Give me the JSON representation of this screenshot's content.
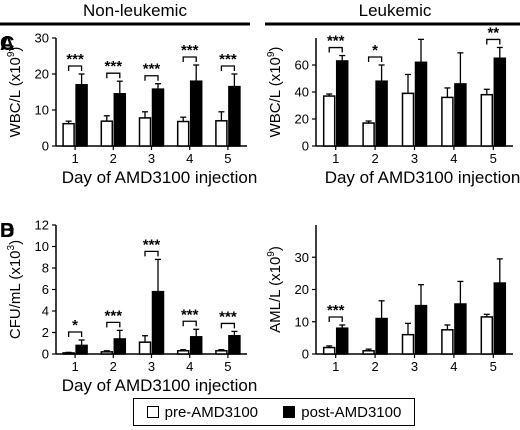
{
  "groups": {
    "left_title": "Non-leukemic",
    "right_title": "Leukemic"
  },
  "legend": {
    "pre": "pre-AMD3100",
    "post": "post-AMD3100"
  },
  "chart_data": [
    {
      "id": "A",
      "letter": "A",
      "type": "bar",
      "categories": [
        "1",
        "2",
        "3",
        "4",
        "5"
      ],
      "xlabel": "Day of AMD3100 injection",
      "ylabel": "WBC/L (x10",
      "ylabel_sup": "9",
      "ylabel_end": ")",
      "ylim": [
        0,
        30
      ],
      "yticks": [
        0,
        10,
        20,
        30
      ],
      "series": [
        {
          "name": "pre-AMD3100",
          "values": [
            6.2,
            6.9,
            7.8,
            6.8,
            7.0
          ],
          "errors": [
            0.7,
            1.5,
            1.7,
            1.2,
            2.5
          ]
        },
        {
          "name": "post-AMD3100",
          "values": [
            17.0,
            14.5,
            15.8,
            18.0,
            16.5
          ],
          "errors": [
            3.0,
            3.5,
            1.5,
            4.5,
            3.5
          ]
        }
      ],
      "significance": [
        "***",
        "***",
        "***",
        "***",
        "***"
      ]
    },
    {
      "id": "B",
      "letter": "B",
      "type": "bar",
      "categories": [
        "1",
        "2",
        "3",
        "4",
        "5"
      ],
      "xlabel": "Day of AMD3100 injection",
      "ylabel": "CFU/mL (x10",
      "ylabel_sup": "3",
      "ylabel_end": ")",
      "ylim": [
        0,
        12
      ],
      "yticks": [
        0,
        2,
        4,
        6,
        8,
        10,
        12
      ],
      "series": [
        {
          "name": "pre-AMD3100",
          "values": [
            0.1,
            0.2,
            1.1,
            0.3,
            0.3
          ],
          "errors": [
            0.05,
            0.1,
            0.6,
            0.1,
            0.1
          ]
        },
        {
          "name": "post-AMD3100",
          "values": [
            0.8,
            1.4,
            5.8,
            1.6,
            1.7
          ],
          "errors": [
            0.5,
            0.8,
            3.0,
            0.7,
            0.4
          ]
        }
      ],
      "significance": [
        "*",
        "***",
        "***",
        "***",
        "***"
      ]
    },
    {
      "id": "C",
      "letter": "C",
      "type": "bar",
      "categories": [
        "1",
        "2",
        "3",
        "4",
        "5"
      ],
      "xlabel": "Day of AMD3100 injection",
      "ylabel": "WBC/L (x10",
      "ylabel_sup": "9",
      "ylabel_end": ")",
      "ylim": [
        0,
        80
      ],
      "yticks": [
        0,
        20,
        40,
        60
      ],
      "series": [
        {
          "name": "pre-AMD3100",
          "values": [
            37,
            17,
            39,
            36,
            38
          ],
          "errors": [
            1.5,
            1.5,
            14,
            7,
            4
          ]
        },
        {
          "name": "post-AMD3100",
          "values": [
            63,
            48,
            62,
            46,
            65
          ],
          "errors": [
            4,
            12,
            17,
            23,
            8
          ]
        }
      ],
      "significance": [
        "***",
        "*",
        "",
        "",
        "**"
      ]
    },
    {
      "id": "D",
      "letter": "D",
      "type": "bar",
      "categories": [
        "1",
        "2",
        "3",
        "4",
        "5"
      ],
      "xlabel": "",
      "ylabel": "AML/L (x10",
      "ylabel_sup": "9",
      "ylabel_end": ")",
      "ylim": [
        0,
        40
      ],
      "yticks": [
        0,
        10,
        20,
        30
      ],
      "series": [
        {
          "name": "pre-AMD3100",
          "values": [
            2,
            1,
            6,
            7.5,
            11.5
          ],
          "errors": [
            0.5,
            0.5,
            3.5,
            1.5,
            0.8
          ]
        },
        {
          "name": "post-AMD3100",
          "values": [
            8,
            11,
            15,
            15.5,
            22
          ],
          "errors": [
            1,
            5.5,
            6.5,
            7,
            7.5
          ]
        }
      ],
      "significance": [
        "***",
        "",
        "",
        "",
        ""
      ]
    }
  ]
}
